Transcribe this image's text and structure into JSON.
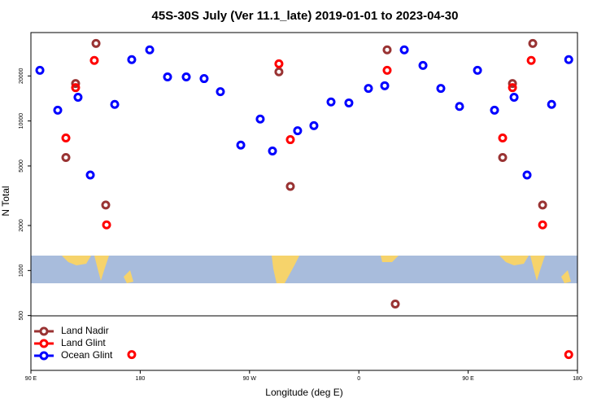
{
  "chart_data": {
    "type": "scatter",
    "title": "45S-30S July (Ver 11.1_late)   2019-01-01 to 2023-04-30",
    "x_label": "Longitude (deg E)",
    "y_label": "N Total",
    "log_y": true,
    "legend": "lower left",
    "xlim": [
      90,
      540
    ],
    "xticks": [
      {
        "value": 90,
        "label": "90 E"
      },
      180,
      {
        "value": 270,
        "label": "90 W"
      },
      {
        "value": 360,
        "label": "0"
      },
      {
        "value": 450,
        "label": "90 E"
      },
      {
        "value": 540,
        "label": "180"
      }
    ],
    "ylim": [
      215,
      39000
    ],
    "yticks": [
      500,
      1000,
      2000,
      5000,
      10000,
      20000
    ],
    "series": [
      {
        "name": "Land Nadir",
        "color": "#993333",
        "x": [
          143.6,
          126.8,
          118.8,
          151.6,
          294.2,
          303.6,
          383.3,
          390,
          486.5,
          478.4,
          503.2,
          511.3
        ],
        "values": [
          33000,
          17800,
          5700,
          2740,
          21300,
          3650,
          29900,
          597,
          17800,
          5700,
          33000,
          2740
        ]
      },
      {
        "name": "Land Glint",
        "color": "#ff0000",
        "x": [
          142.2,
          126.8,
          118.8,
          152.3,
          294.2,
          303.6,
          383.3,
          173,
          501.9,
          486.5,
          478.4,
          511.3,
          532.8
        ],
        "values": [
          25400,
          16700,
          7700,
          2020,
          24100,
          7500,
          21800,
          274,
          25400,
          16700,
          7700,
          2020,
          274
        ]
      },
      {
        "name": "Ocean Glint",
        "color": "#0000ff",
        "x": [
          97.4,
          112.1,
          128.8,
          138.9,
          159,
          173,
          187.8,
          202.5,
          217.9,
          232.6,
          246,
          262.8,
          278.8,
          288.9,
          309.6,
          323,
          337.1,
          351.8,
          367.9,
          381.3,
          397.4,
          412.8,
          427.5,
          442.9,
          457.7,
          471.7,
          487.8,
          498.5,
          518.7,
          532.8
        ],
        "values": [
          21800,
          11800,
          14400,
          4350,
          12900,
          25700,
          29900,
          19700,
          19700,
          19200,
          15700,
          6900,
          10300,
          6300,
          8600,
          9300,
          13400,
          13200,
          16500,
          17200,
          29900,
          23500,
          16500,
          12500,
          21800,
          11800,
          14400,
          4350,
          12900,
          25700
        ]
      }
    ]
  }
}
